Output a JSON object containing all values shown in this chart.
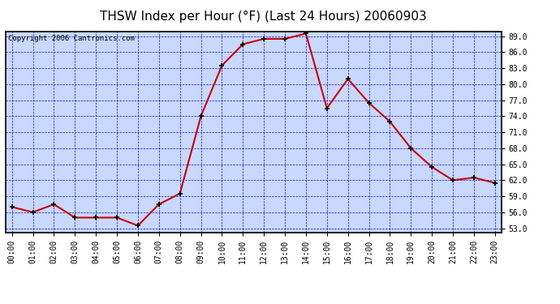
{
  "title": "THSW Index per Hour (°F) (Last 24 Hours) 20060903",
  "copyright_text": "Copyright 2006 Cantronics.com",
  "hours": [
    0,
    1,
    2,
    3,
    4,
    5,
    6,
    7,
    8,
    9,
    10,
    11,
    12,
    13,
    14,
    15,
    16,
    17,
    18,
    19,
    20,
    21,
    22,
    23
  ],
  "values": [
    57.0,
    56.0,
    57.5,
    55.0,
    55.0,
    55.0,
    53.5,
    57.5,
    59.5,
    74.0,
    83.5,
    87.5,
    88.5,
    88.5,
    89.5,
    75.5,
    81.0,
    76.5,
    73.0,
    68.0,
    64.5,
    62.0,
    62.5,
    61.5
  ],
  "ylim_min": 53.0,
  "ylim_max": 89.0,
  "ytick_step": 3.0,
  "line_color": "#cc0000",
  "marker_color": "#000000",
  "plot_bg_color": "#c8d8ff",
  "fig_bg_color": "#ffffff",
  "grid_color": "#0000bb",
  "title_fontsize": 11,
  "tick_fontsize": 7,
  "copyright_fontsize": 6.5
}
